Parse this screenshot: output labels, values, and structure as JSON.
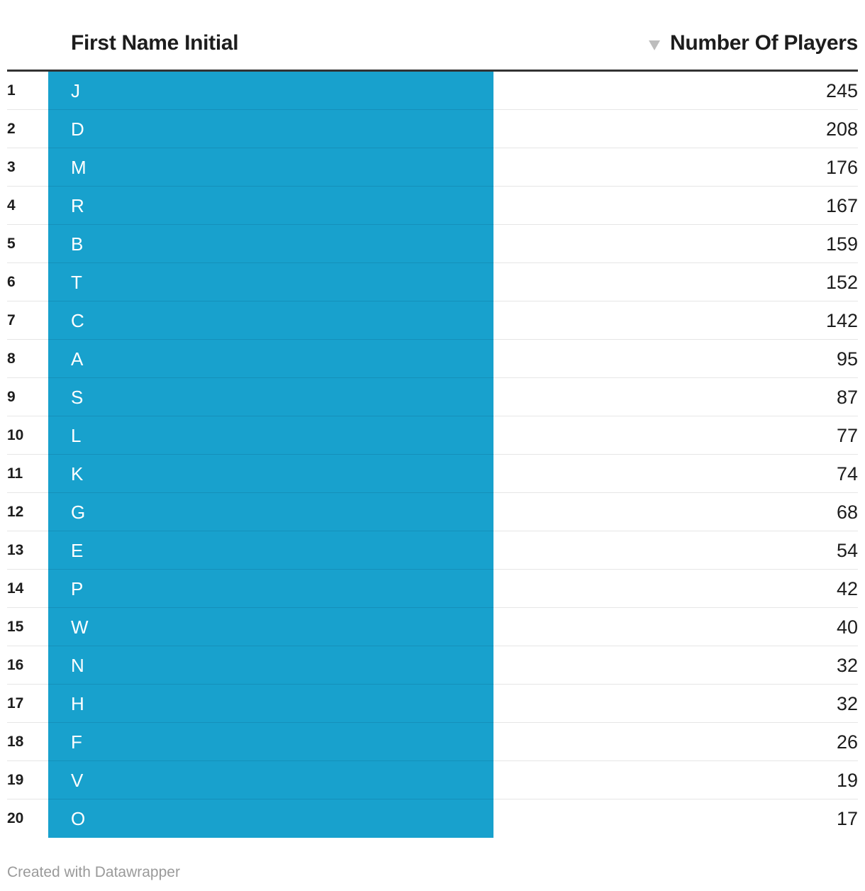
{
  "chart_data": {
    "type": "table",
    "columns": [
      "First Name Initial",
      "Number Of Players"
    ],
    "sort": "descending by Number Of Players",
    "rows": [
      {
        "rank": "1",
        "initial": "J",
        "count": "245"
      },
      {
        "rank": "2",
        "initial": "D",
        "count": "208"
      },
      {
        "rank": "3",
        "initial": "M",
        "count": "176"
      },
      {
        "rank": "4",
        "initial": "R",
        "count": "167"
      },
      {
        "rank": "5",
        "initial": "B",
        "count": "159"
      },
      {
        "rank": "6",
        "initial": "T",
        "count": "152"
      },
      {
        "rank": "7",
        "initial": "C",
        "count": "142"
      },
      {
        "rank": "8",
        "initial": "A",
        "count": "95"
      },
      {
        "rank": "9",
        "initial": "S",
        "count": "87"
      },
      {
        "rank": "10",
        "initial": "L",
        "count": "77"
      },
      {
        "rank": "11",
        "initial": "K",
        "count": "74"
      },
      {
        "rank": "12",
        "initial": "G",
        "count": "68"
      },
      {
        "rank": "13",
        "initial": "E",
        "count": "54"
      },
      {
        "rank": "14",
        "initial": "P",
        "count": "42"
      },
      {
        "rank": "15",
        "initial": "W",
        "count": "40"
      },
      {
        "rank": "16",
        "initial": "N",
        "count": "32"
      },
      {
        "rank": "17",
        "initial": "H",
        "count": "32"
      },
      {
        "rank": "18",
        "initial": "F",
        "count": "26"
      },
      {
        "rank": "19",
        "initial": "V",
        "count": "19"
      },
      {
        "rank": "20",
        "initial": "O",
        "count": "17"
      }
    ]
  },
  "header": {
    "initial_label": "First Name Initial",
    "count_label": "Number Of Players",
    "sort_icon": "sort-descending-icon"
  },
  "footer": {
    "credit": "Created with Datawrapper"
  },
  "colors": {
    "highlight": "#18a1cd",
    "header_rule": "#333333"
  }
}
